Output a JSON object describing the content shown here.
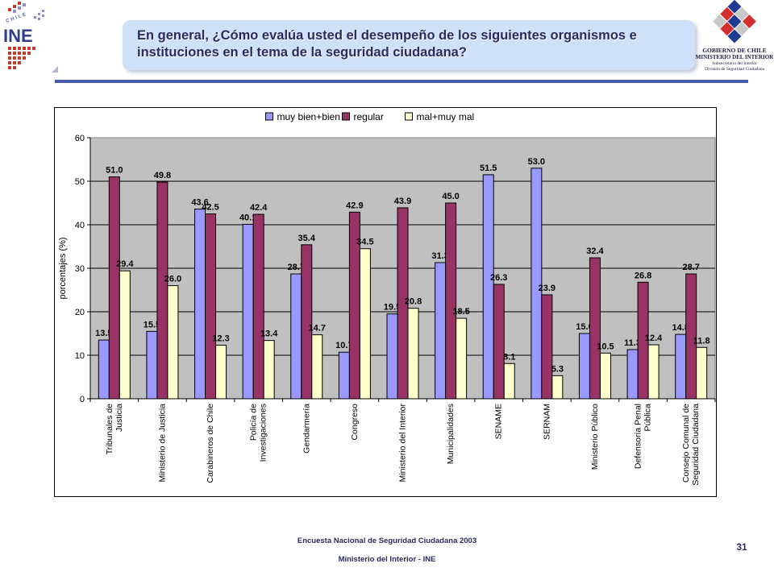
{
  "header": {
    "title": "En general, ¿Cómo evalúa usted el desempeño de los siguientes organismos e instituciones en el tema de la seguridad ciudadana?",
    "ine_logo_text": "INE",
    "ine_country_text": "CHILE",
    "gov_line1": "GOBIERNO DE CHILE",
    "gov_line2": "MINISTERIO DEL INTERIOR",
    "gov_line3": "Subsecretaría del Interior",
    "gov_line4": "División de Seguridad Ciudadana"
  },
  "colors": {
    "title_box": "#cfe1f7",
    "title_text": "#2b2b5c",
    "rule": "#4a59a8",
    "plot_bg": "#c0c0c0",
    "series1": "#9999ff",
    "series2": "#993366",
    "series3": "#ffffcc"
  },
  "chart_data": {
    "type": "bar",
    "title": "",
    "ylabel": "porcentajes (%)",
    "xlabel": "",
    "ylim": [
      0,
      60
    ],
    "yticks": [
      0,
      10,
      20,
      30,
      40,
      50,
      60
    ],
    "legend_position": "top",
    "grid": true,
    "categories": [
      [
        "Tribunales de",
        "Justicia"
      ],
      [
        "Ministerio de Justicia"
      ],
      [
        "Carabineros de Chile"
      ],
      [
        "Policía de",
        "Investigaciones"
      ],
      [
        "Gendarmería"
      ],
      [
        "Congreso"
      ],
      [
        "Ministerio del Interior"
      ],
      [
        "Municipalidades"
      ],
      [
        "SENAME"
      ],
      [
        "SERNAM"
      ],
      [
        "Ministerio Público"
      ],
      [
        "Defensoría Penal",
        "Pública"
      ],
      [
        "Consejo Comunal de",
        "Seguridad Ciudadana"
      ]
    ],
    "series": [
      {
        "name": "muy bien+bien",
        "values": [
          13.5,
          15.5,
          43.6,
          40.1,
          28.7,
          10.7,
          19.5,
          31.3,
          51.5,
          53.0,
          15.0,
          11.3,
          14.8
        ]
      },
      {
        "name": "regular",
        "values": [
          51.0,
          49.8,
          42.5,
          42.4,
          35.4,
          42.9,
          43.9,
          45.0,
          26.3,
          23.9,
          32.4,
          26.8,
          28.7
        ]
      },
      {
        "name": "mal+muy mal",
        "values": [
          29.4,
          26.0,
          12.3,
          13.4,
          14.7,
          34.5,
          20.8,
          18.5,
          8.1,
          5.3,
          10.5,
          12.4,
          11.8
        ]
      }
    ]
  },
  "footer": {
    "line1": "Encuesta Nacional de Seguridad Ciudadana 2003",
    "line2": "Ministerio del Interior - INE",
    "page_number": "31"
  }
}
